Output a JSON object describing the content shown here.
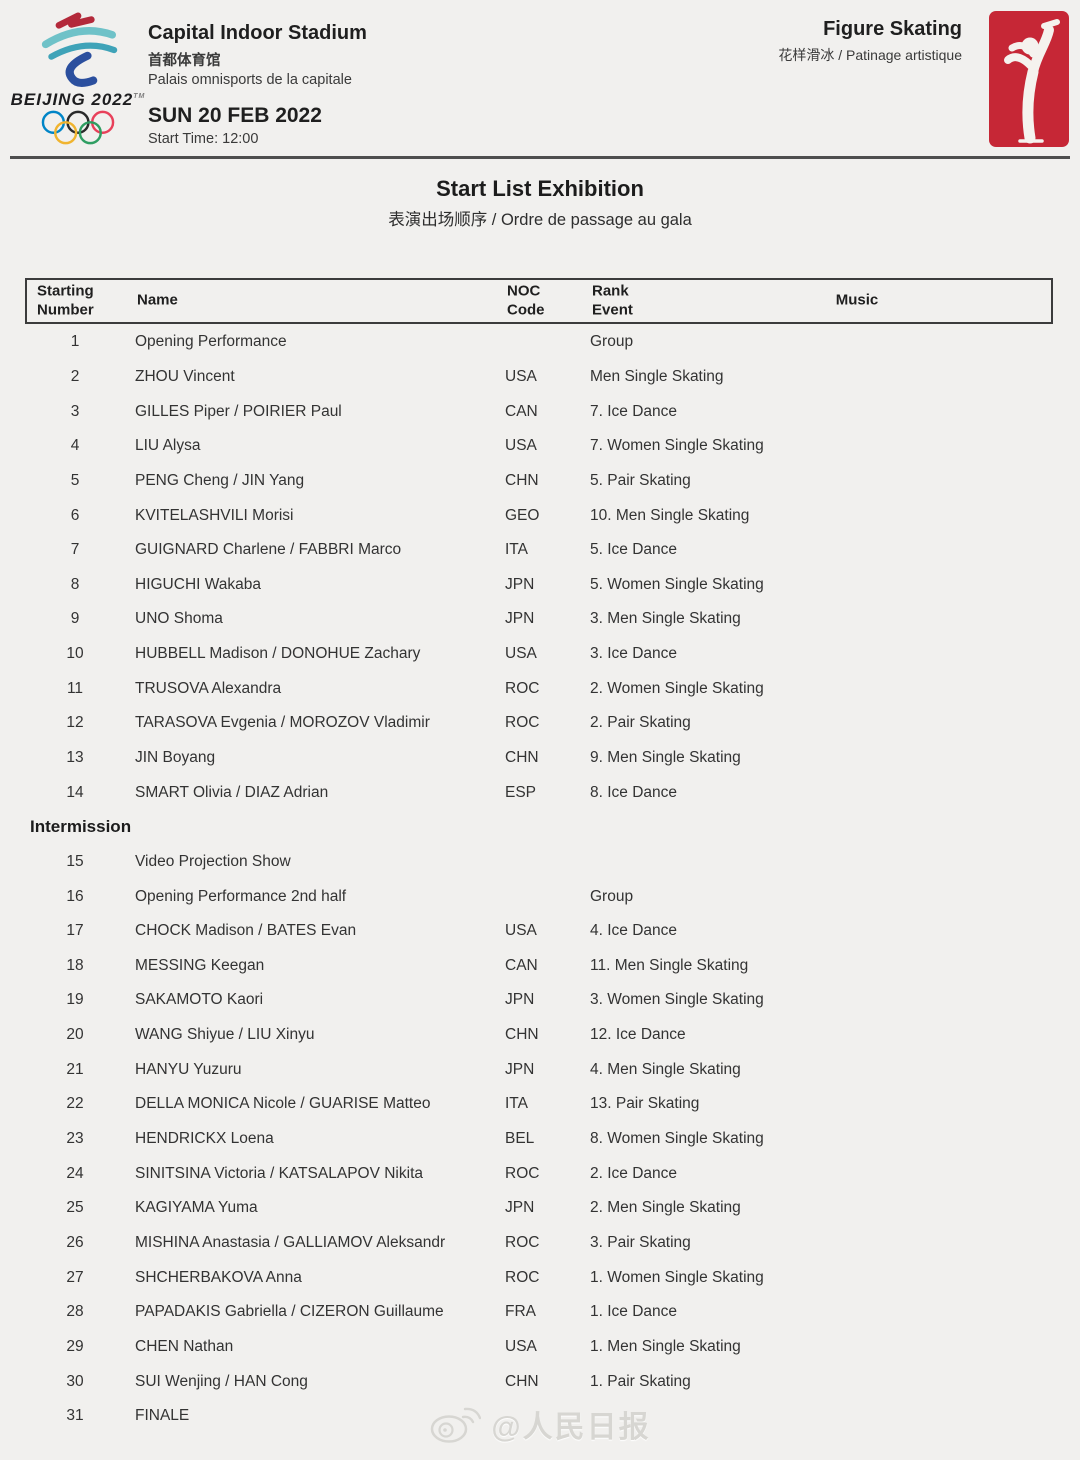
{
  "colors": {
    "pictogram_red": "#c62736",
    "ring_blue": "#0085c7",
    "ring_black": "#2a2a2a",
    "ring_red": "#e8405a",
    "ring_yellow": "#f0b42f",
    "ring_green": "#2f9e62",
    "emblem_red": "#b3293a",
    "emblem_teal": "#6fc2c8",
    "emblem_cyan": "#3fa3b8",
    "emblem_blue": "#2b4f9e"
  },
  "header": {
    "logo": {
      "brand": "BEIJING 2022",
      "tm": "TM"
    },
    "venue": {
      "name": "Capital Indoor Stadium",
      "name_zh": "首都体育馆",
      "name_fr": "Palais omnisports de la capitale"
    },
    "date": "SUN 20 FEB 2022",
    "start_time": "Start Time: 12:00",
    "discipline": {
      "name": "Figure Skating",
      "sub": "花样滑冰 / Patinage artistique"
    }
  },
  "title": {
    "main": "Start List Exhibition",
    "sub": "表演出场顺序 / Ordre de passage au gala"
  },
  "table": {
    "columns": {
      "starting": [
        "Starting",
        "Number"
      ],
      "name": "Name",
      "noc": [
        "NOC",
        "Code"
      ],
      "rank_event": [
        "Rank",
        "Event"
      ],
      "music": "Music"
    },
    "intermission": {
      "label": "Intermission",
      "before_number": "15"
    },
    "rows": [
      {
        "n": "1",
        "name": "Opening Performance",
        "noc": "",
        "event": "Group"
      },
      {
        "n": "2",
        "name": "ZHOU Vincent",
        "noc": "USA",
        "event": "Men Single Skating"
      },
      {
        "n": "3",
        "name": "GILLES Piper / POIRIER Paul",
        "noc": "CAN",
        "event": "7. Ice Dance"
      },
      {
        "n": "4",
        "name": "LIU Alysa",
        "noc": "USA",
        "event": "7. Women Single Skating"
      },
      {
        "n": "5",
        "name": "PENG Cheng / JIN Yang",
        "noc": "CHN",
        "event": "5. Pair Skating"
      },
      {
        "n": "6",
        "name": "KVITELASHVILI Morisi",
        "noc": "GEO",
        "event": "10. Men Single Skating"
      },
      {
        "n": "7",
        "name": "GUIGNARD Charlene / FABBRI Marco",
        "noc": "ITA",
        "event": "5. Ice Dance"
      },
      {
        "n": "8",
        "name": "HIGUCHI Wakaba",
        "noc": "JPN",
        "event": "5. Women Single Skating"
      },
      {
        "n": "9",
        "name": "UNO Shoma",
        "noc": "JPN",
        "event": "3. Men Single Skating"
      },
      {
        "n": "10",
        "name": "HUBBELL Madison / DONOHUE Zachary",
        "noc": "USA",
        "event": "3. Ice Dance"
      },
      {
        "n": "11",
        "name": "TRUSOVA Alexandra",
        "noc": "ROC",
        "event": "2. Women Single Skating"
      },
      {
        "n": "12",
        "name": "TARASOVA Evgenia / MOROZOV Vladimir",
        "noc": "ROC",
        "event": "2. Pair Skating"
      },
      {
        "n": "13",
        "name": "JIN Boyang",
        "noc": "CHN",
        "event": "9. Men Single Skating"
      },
      {
        "n": "14",
        "name": "SMART Olivia / DIAZ Adrian",
        "noc": "ESP",
        "event": "8. Ice Dance"
      },
      {
        "n": "15",
        "name": "Video Projection Show",
        "noc": "",
        "event": ""
      },
      {
        "n": "16",
        "name": "Opening Performance 2nd half",
        "noc": "",
        "event": "Group"
      },
      {
        "n": "17",
        "name": "CHOCK Madison / BATES Evan",
        "noc": "USA",
        "event": "4. Ice Dance"
      },
      {
        "n": "18",
        "name": "MESSING Keegan",
        "noc": "CAN",
        "event": "11. Men Single Skating"
      },
      {
        "n": "19",
        "name": "SAKAMOTO Kaori",
        "noc": "JPN",
        "event": "3. Women Single Skating"
      },
      {
        "n": "20",
        "name": "WANG Shiyue / LIU Xinyu",
        "noc": "CHN",
        "event": "12. Ice Dance"
      },
      {
        "n": "21",
        "name": "HANYU Yuzuru",
        "noc": "JPN",
        "event": "4. Men Single Skating"
      },
      {
        "n": "22",
        "name": "DELLA MONICA Nicole / GUARISE Matteo",
        "noc": "ITA",
        "event": "13. Pair Skating"
      },
      {
        "n": "23",
        "name": "HENDRICKX Loena",
        "noc": "BEL",
        "event": "8. Women Single Skating"
      },
      {
        "n": "24",
        "name": "SINITSINA Victoria / KATSALAPOV Nikita",
        "noc": "ROC",
        "event": "2. Ice Dance"
      },
      {
        "n": "25",
        "name": "KAGIYAMA Yuma",
        "noc": "JPN",
        "event": "2. Men Single Skating"
      },
      {
        "n": "26",
        "name": "MISHINA Anastasia / GALLIAMOV Aleksandr",
        "noc": "ROC",
        "event": "3. Pair Skating"
      },
      {
        "n": "27",
        "name": "SHCHERBAKOVA Anna",
        "noc": "ROC",
        "event": "1. Women Single Skating"
      },
      {
        "n": "28",
        "name": "PAPADAKIS Gabriella / CIZERON Guillaume",
        "noc": "FRA",
        "event": "1. Ice Dance"
      },
      {
        "n": "29",
        "name": "CHEN Nathan",
        "noc": "USA",
        "event": "1. Men Single Skating"
      },
      {
        "n": "30",
        "name": "SUI Wenjing / HAN Cong",
        "noc": "CHN",
        "event": "1. Pair Skating"
      },
      {
        "n": "31",
        "name": "FINALE",
        "noc": "",
        "event": ""
      }
    ]
  },
  "watermark": {
    "handle": "@人民日报"
  }
}
